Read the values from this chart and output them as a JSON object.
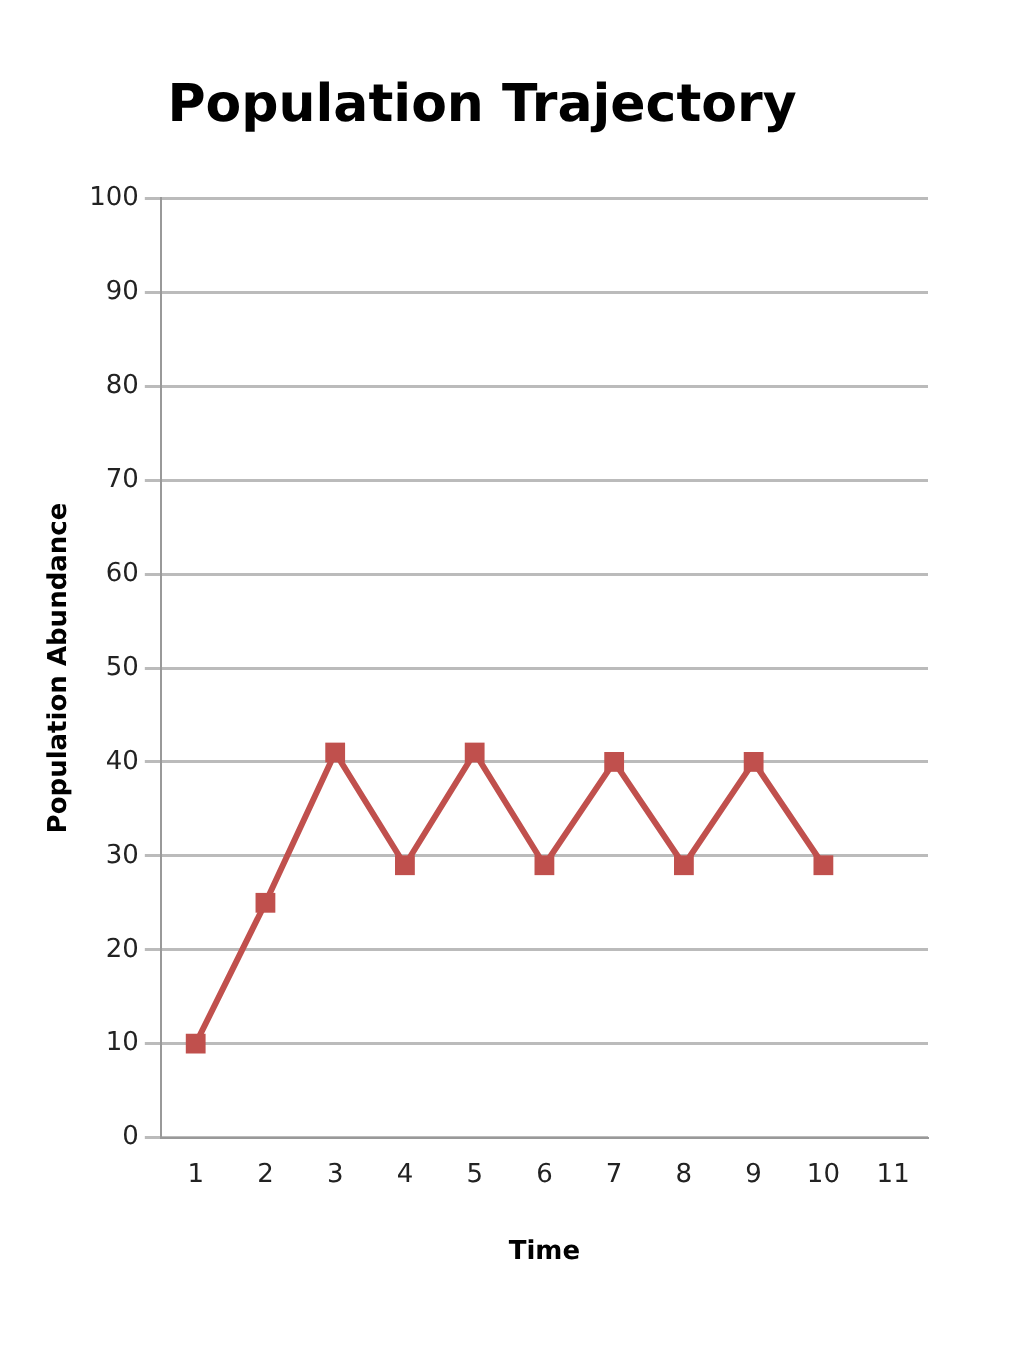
{
  "chart_data": {
    "type": "line",
    "title": "Population Trajectory",
    "xlabel": "Time",
    "ylabel": "Population Abundance",
    "categories": [
      "1",
      "2",
      "3",
      "4",
      "5",
      "6",
      "7",
      "8",
      "9",
      "10",
      "11"
    ],
    "series": [
      {
        "color": "#c0504d",
        "values": [
          10,
          25,
          41,
          29,
          41,
          29,
          40,
          29,
          40,
          29,
          null
        ]
      }
    ],
    "ylim": [
      0,
      100
    ],
    "yticks": [
      0,
      10,
      20,
      30,
      40,
      50,
      60,
      70,
      80,
      90,
      100
    ],
    "grid": "y",
    "legend": false,
    "marker": "square",
    "line_style": "solid"
  }
}
